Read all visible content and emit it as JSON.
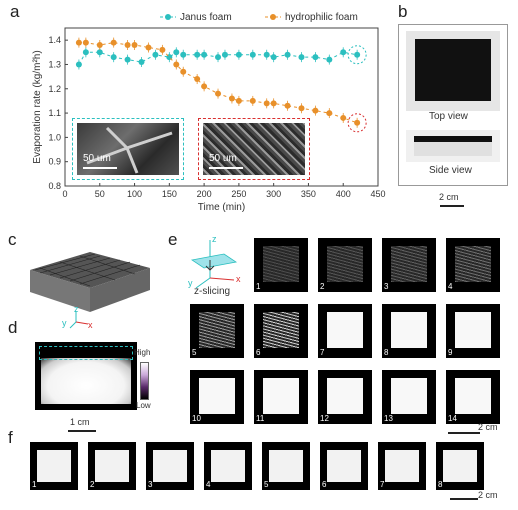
{
  "panel_labels": {
    "a": "a",
    "b": "b",
    "c": "c",
    "d": "d",
    "e": "e",
    "f": "f"
  },
  "colors": {
    "janus": "#2bbfbf",
    "hydrophilic": "#e8902a",
    "inset_left_border": "#2bbfbf",
    "inset_right_border": "#d93030"
  },
  "chart_data": {
    "type": "scatter",
    "xlabel": "Time (min)",
    "ylabel": "Evaporation rate (kg/m²h)",
    "xlim": [
      0,
      450
    ],
    "ylim": [
      0.8,
      1.45
    ],
    "xticks": [
      0,
      50,
      100,
      150,
      200,
      250,
      300,
      350,
      400,
      450
    ],
    "yticks": [
      0.8,
      0.9,
      1.0,
      1.1,
      1.2,
      1.3,
      1.4
    ],
    "legend_position": "top",
    "series": [
      {
        "name": "Janus foam",
        "x": [
          20,
          30,
          50,
          70,
          90,
          110,
          130,
          150,
          160,
          170,
          190,
          200,
          220,
          230,
          250,
          270,
          290,
          300,
          320,
          340,
          360,
          380,
          400,
          420
        ],
        "y": [
          1.3,
          1.35,
          1.35,
          1.33,
          1.32,
          1.31,
          1.34,
          1.33,
          1.35,
          1.34,
          1.34,
          1.34,
          1.33,
          1.34,
          1.34,
          1.34,
          1.34,
          1.33,
          1.34,
          1.33,
          1.33,
          1.32,
          1.35,
          1.34
        ]
      },
      {
        "name": "hydrophilic foam",
        "x": [
          20,
          30,
          50,
          70,
          90,
          100,
          120,
          140,
          160,
          170,
          190,
          200,
          220,
          240,
          250,
          270,
          290,
          300,
          320,
          340,
          360,
          380,
          400,
          420
        ],
        "y": [
          1.39,
          1.39,
          1.38,
          1.39,
          1.38,
          1.38,
          1.37,
          1.36,
          1.3,
          1.27,
          1.24,
          1.21,
          1.18,
          1.16,
          1.15,
          1.15,
          1.14,
          1.14,
          1.13,
          1.12,
          1.11,
          1.1,
          1.08,
          1.06
        ]
      }
    ],
    "insets": [
      {
        "scalebar": "50 um"
      },
      {
        "scalebar": "50 um"
      }
    ]
  },
  "panel_b": {
    "top_view": "Top view",
    "side_view": "Side view",
    "scalebar": "2 cm"
  },
  "panel_c": {
    "axis_z": "z",
    "axis_y": "y",
    "axis_x": "x"
  },
  "panel_d": {
    "high": "High",
    "low": "Low",
    "scalebar": "1 cm"
  },
  "panel_e": {
    "slicing_label": "z-slicing",
    "axis_z": "z",
    "axis_y": "y",
    "axis_x": "x",
    "scalebar": "2 cm",
    "tiles": [
      {
        "num": "1",
        "fill": 0.05
      },
      {
        "num": "2",
        "fill": 0.08
      },
      {
        "num": "3",
        "fill": 0.12
      },
      {
        "num": "4",
        "fill": 0.18
      },
      {
        "num": "5",
        "fill": 0.35
      },
      {
        "num": "6",
        "fill": 0.55
      },
      {
        "num": "7",
        "fill": 0.95
      },
      {
        "num": "8",
        "fill": 0.95
      },
      {
        "num": "9",
        "fill": 1.0
      },
      {
        "num": "10",
        "fill": 1.0
      },
      {
        "num": "11",
        "fill": 1.0
      },
      {
        "num": "12",
        "fill": 1.0
      },
      {
        "num": "13",
        "fill": 1.0
      },
      {
        "num": "14",
        "fill": 1.0
      }
    ]
  },
  "panel_f": {
    "scalebar": "2 cm",
    "tiles": [
      "1",
      "2",
      "3",
      "4",
      "5",
      "6",
      "7",
      "8"
    ]
  }
}
